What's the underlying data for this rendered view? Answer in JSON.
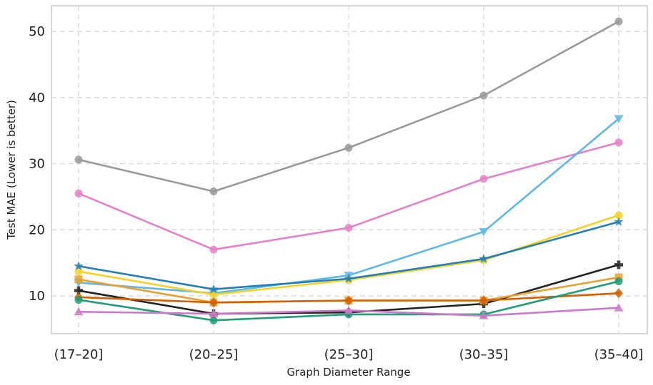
{
  "chart_data": {
    "type": "line",
    "title": "",
    "xlabel": "Graph Diameter Range",
    "ylabel": "Test MAE (Lower is better)",
    "categories": [
      "(17–20]",
      "(20–25]",
      "(25–30]",
      "(30–35]",
      "(35–40]"
    ],
    "ylim": [
      4,
      54
    ],
    "yticks": [
      10,
      20,
      30,
      40,
      50
    ],
    "grid": true,
    "legend": "none",
    "series": [
      {
        "name": "series-gray",
        "color": "#999999",
        "marker": "circle",
        "values": [
          30.6,
          25.8,
          32.4,
          40.3,
          51.5
        ]
      },
      {
        "name": "series-pink",
        "color": "#e581c9",
        "marker": "circle",
        "values": [
          25.5,
          17.0,
          20.3,
          27.7,
          33.2
        ]
      },
      {
        "name": "series-lightblue",
        "color": "#5db8e5",
        "marker": "triangle-down",
        "values": [
          12.0,
          10.4,
          13.1,
          19.7,
          36.8
        ]
      },
      {
        "name": "series-yellow",
        "color": "#f5d224",
        "marker": "circle",
        "values": [
          13.7,
          10.2,
          12.4,
          15.4,
          22.2
        ]
      },
      {
        "name": "series-blue",
        "color": "#2380b7",
        "marker": "star",
        "values": [
          14.5,
          11.0,
          12.6,
          15.6,
          21.2
        ]
      },
      {
        "name": "series-black",
        "color": "#222222",
        "marker": "plus",
        "values": [
          10.8,
          7.3,
          7.5,
          8.8,
          14.7
        ]
      },
      {
        "name": "series-lightorange",
        "color": "#e8a030",
        "marker": "square",
        "values": [
          12.5,
          9.0,
          9.3,
          9.3,
          12.8
        ]
      },
      {
        "name": "series-darkorange",
        "color": "#d35f00",
        "marker": "diamond",
        "values": [
          9.8,
          9.0,
          9.3,
          9.3,
          10.4
        ]
      },
      {
        "name": "series-green",
        "color": "#1f9e77",
        "marker": "circle",
        "values": [
          9.4,
          6.3,
          7.2,
          7.2,
          12.2
        ]
      },
      {
        "name": "series-violet",
        "color": "#cc79c7",
        "marker": "triangle-up",
        "values": [
          7.6,
          7.3,
          7.8,
          7.0,
          8.2
        ]
      }
    ]
  }
}
